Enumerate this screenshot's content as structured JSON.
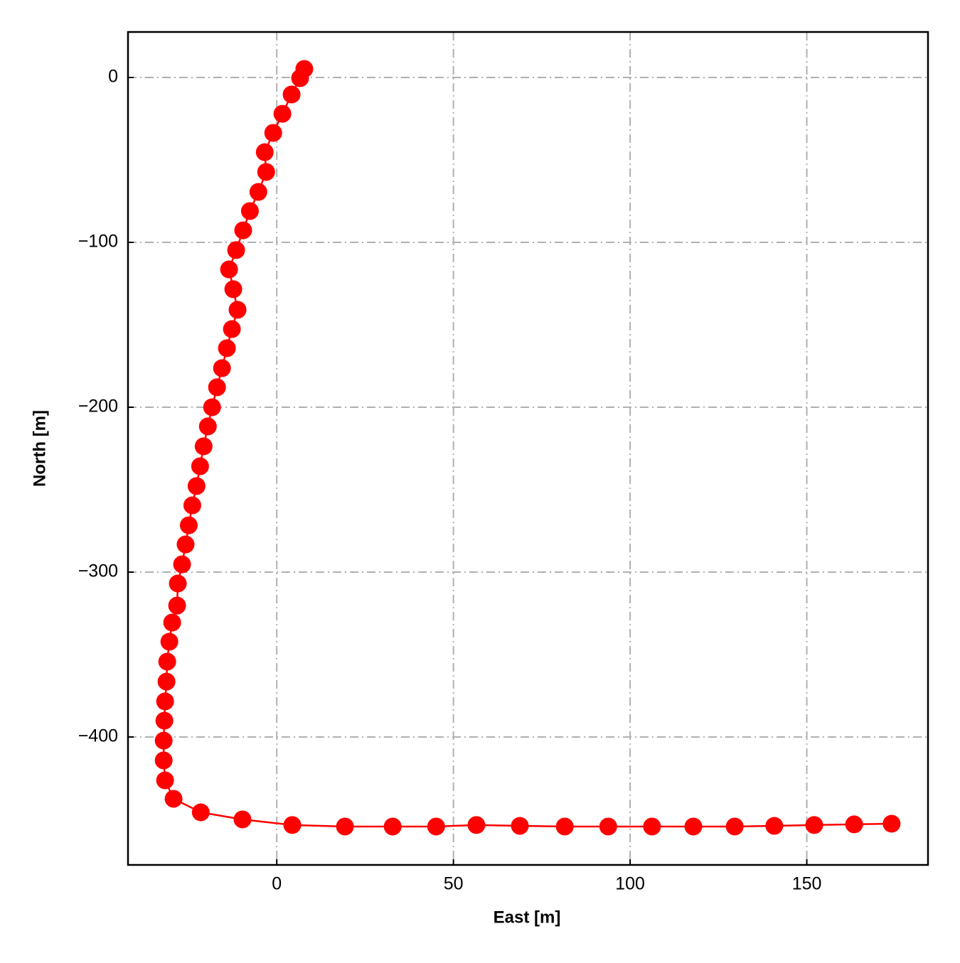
{
  "chart_data": {
    "type": "line",
    "xlabel": "East [m]",
    "ylabel": "North [m]",
    "x": [
      7.8,
      6.6,
      4.2,
      1.6,
      -1.0,
      -3.4,
      -3.0,
      -5.2,
      -7.6,
      -9.5,
      -11.5,
      -13.5,
      -12.3,
      -11.1,
      -12.7,
      -14.1,
      -15.5,
      -16.9,
      -18.3,
      -19.5,
      -20.7,
      -21.7,
      -22.7,
      -23.9,
      -24.9,
      -25.8,
      -26.8,
      -28.0,
      -28.2,
      -29.6,
      -30.4,
      -31.0,
      -31.2,
      -31.6,
      -31.8,
      -32.0,
      -32.0,
      -31.6,
      -29.2,
      -21.5,
      -9.7,
      4.4,
      19.3,
      32.8,
      45.1,
      56.5,
      68.8,
      81.5,
      93.8,
      106.2,
      117.9,
      129.6,
      140.8,
      152.1,
      163.4,
      174.0
    ],
    "series": [
      {
        "color": "#ff0000",
        "values": [
          5.2,
          -0.4,
          -10.3,
          -22.0,
          -33.6,
          -45.3,
          -57.3,
          -69.4,
          -81.0,
          -92.7,
          -104.7,
          -116.4,
          -128.4,
          -140.9,
          -152.6,
          -164.2,
          -176.3,
          -187.9,
          -200.0,
          -211.6,
          -223.7,
          -235.8,
          -247.8,
          -259.5,
          -271.6,
          -283.2,
          -295.3,
          -306.9,
          -320.3,
          -330.6,
          -342.2,
          -354.3,
          -366.4,
          -378.4,
          -390.1,
          -402.2,
          -414.2,
          -426.3,
          -437.5,
          -445.7,
          -450.0,
          -453.4,
          -454.3,
          -454.3,
          -454.3,
          -453.4,
          -453.9,
          -454.3,
          -454.3,
          -454.3,
          -454.3,
          -454.3,
          -453.9,
          -453.4,
          -453.0,
          -452.6
        ]
      }
    ],
    "xlim": [
      -42.1,
      184.3
    ],
    "ylim": [
      -477.6,
      27.6
    ],
    "xticks": [
      0,
      50,
      100,
      150
    ],
    "yticks": [
      0,
      {
        "value": -100,
        "label": "−100"
      },
      {
        "value": -200,
        "label": "−200"
      },
      {
        "value": -300,
        "label": "−300"
      },
      {
        "value": -400,
        "label": "−400"
      }
    ],
    "grid": true
  }
}
